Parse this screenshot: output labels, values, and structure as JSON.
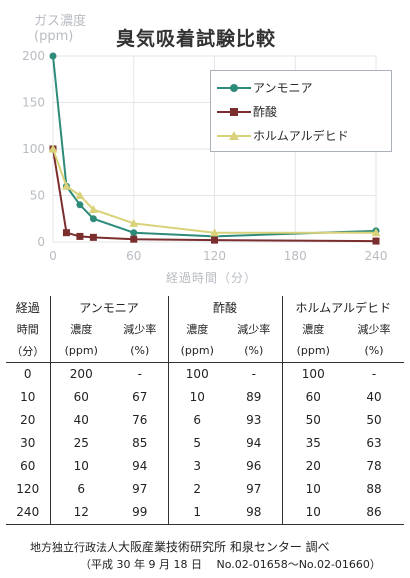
{
  "chart_data": {
    "type": "line",
    "title": "臭気吸着試験比較",
    "ylabel": "ガス濃度",
    "ylabel_unit": "(ppm)",
    "xlabel": "経過時間（分）",
    "x": [
      0,
      10,
      20,
      30,
      60,
      120,
      240
    ],
    "xticks": [
      0,
      60,
      120,
      180,
      240
    ],
    "yticks": [
      0,
      50,
      100,
      150,
      200
    ],
    "xlim": [
      0,
      240
    ],
    "ylim": [
      0,
      200
    ],
    "grid": true,
    "legend_position": "top-right",
    "series": [
      {
        "name": "アンモニア",
        "values": [
          200,
          60,
          40,
          25,
          10,
          6,
          12
        ],
        "color": "#2e8b7a",
        "marker": "circle"
      },
      {
        "name": "酢酸",
        "values": [
          100,
          10,
          6,
          5,
          3,
          2,
          1
        ],
        "color": "#7a2e2e",
        "marker": "square"
      },
      {
        "name": "ホルムアルデヒド",
        "values": [
          100,
          60,
          50,
          35,
          20,
          10,
          10
        ],
        "color": "#d9d27a",
        "marker": "triangle"
      }
    ]
  },
  "table": {
    "header": {
      "col0": [
        "経過",
        "時間",
        "（分）"
      ],
      "groups": [
        "アンモニア",
        "酢酸",
        "ホルムアルデヒド"
      ],
      "sub_labels": [
        "濃度",
        "減少率"
      ],
      "sub_units": [
        "(ppm)",
        "(%)"
      ]
    },
    "rows": [
      [
        "0",
        "200",
        "-",
        "100",
        "-",
        "100",
        "-"
      ],
      [
        "10",
        "60",
        "67",
        "10",
        "89",
        "60",
        "40"
      ],
      [
        "20",
        "40",
        "76",
        "6",
        "93",
        "50",
        "50"
      ],
      [
        "30",
        "25",
        "85",
        "5",
        "94",
        "35",
        "63"
      ],
      [
        "60",
        "10",
        "94",
        "3",
        "96",
        "20",
        "78"
      ],
      [
        "120",
        "6",
        "97",
        "2",
        "97",
        "10",
        "88"
      ],
      [
        "240",
        "12",
        "99",
        "1",
        "98",
        "10",
        "86"
      ]
    ]
  },
  "footer": {
    "org_prefix": "地方独立行政法人",
    "org_name": "大阪産業技術研究所 和泉センター 調べ",
    "note": "（平成 30 年 9 月 18 日　 No.02-01658～No.02-01660）"
  }
}
